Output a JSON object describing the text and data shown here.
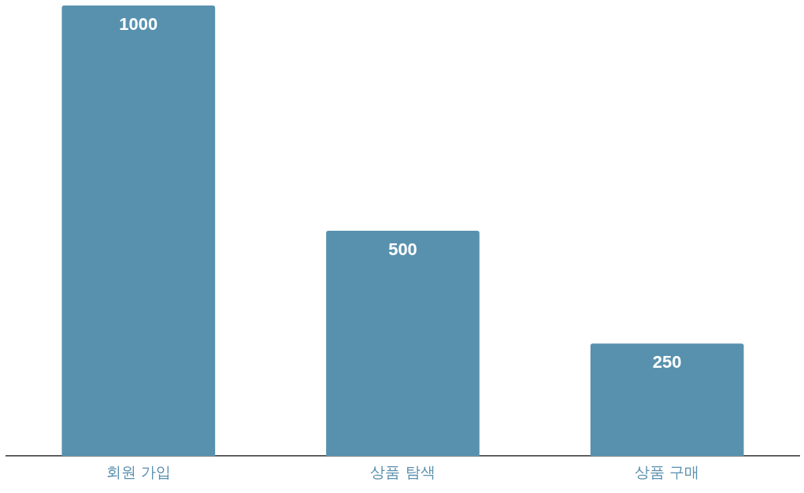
{
  "chart_data": {
    "type": "bar",
    "categories": [
      "회원 가입",
      "상품 탐색",
      "상품 구매"
    ],
    "values": [
      1000,
      500,
      250
    ],
    "color": "#5891ae",
    "data_labels": true,
    "grid": false,
    "legend": false
  }
}
